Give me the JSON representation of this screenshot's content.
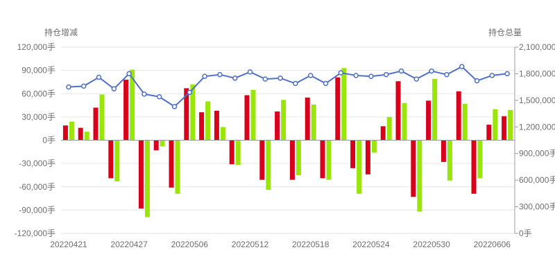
{
  "chart_data": {
    "type": "bar",
    "left_axis_title": "持仓增减",
    "right_axis_title": "持仓总量",
    "left_ticks": [
      "120,000手",
      "90,000手",
      "60,000手",
      "30,000手",
      "0手",
      "-30,000手",
      "-60,000手",
      "-90,000手",
      "-120,000手"
    ],
    "right_ticks": [
      "2,100,000手",
      "1,800,000手",
      "1,500,000手",
      "1,200,000手",
      "900,000手",
      "600,000手",
      "300,000手",
      "0手"
    ],
    "x_tick_labels": [
      "20220421",
      "20220427",
      "20220506",
      "20220512",
      "20220518",
      "20220524",
      "20220530",
      "20220606"
    ],
    "ylim_left": [
      -120000,
      120000
    ],
    "ylim_right": [
      0,
      2100000
    ],
    "grid": true,
    "colors": {
      "series_a": "#d9001b",
      "series_b": "#9be60a",
      "line": "#4f6fc8",
      "grid": "#e6e6e6",
      "axis": "#9a9a9a",
      "text": "#6e6e6e"
    },
    "series": [
      {
        "axis": "left",
        "type": "bar",
        "values": [
          19000,
          16000,
          42000,
          -49000,
          78000,
          -88000,
          -13000,
          -61000,
          67000,
          36000,
          38000,
          -31000,
          58000,
          -51000,
          37000,
          -51000,
          55000,
          -49000,
          81000,
          -36000,
          -44000,
          18000,
          76000,
          -73000,
          51000,
          -28000,
          63000,
          -69000,
          20000,
          31000
        ]
      },
      {
        "axis": "left",
        "type": "bar",
        "values": [
          24000,
          11000,
          59000,
          -53000,
          91000,
          -99000,
          -8000,
          -69000,
          72000,
          50000,
          17000,
          -32000,
          65000,
          -64000,
          52000,
          -45000,
          46000,
          -51000,
          93000,
          -69000,
          -16000,
          30000,
          48000,
          -92000,
          79000,
          -52000,
          47000,
          -49000,
          40000,
          39000
        ]
      },
      {
        "axis": "right",
        "type": "line",
        "values": [
          1650000,
          1660000,
          1760000,
          1630000,
          1800000,
          1570000,
          1540000,
          1430000,
          1590000,
          1770000,
          1790000,
          1750000,
          1820000,
          1740000,
          1750000,
          1690000,
          1780000,
          1690000,
          1810000,
          1780000,
          1770000,
          1790000,
          1830000,
          1740000,
          1830000,
          1790000,
          1880000,
          1720000,
          1780000,
          1800000
        ]
      }
    ]
  }
}
